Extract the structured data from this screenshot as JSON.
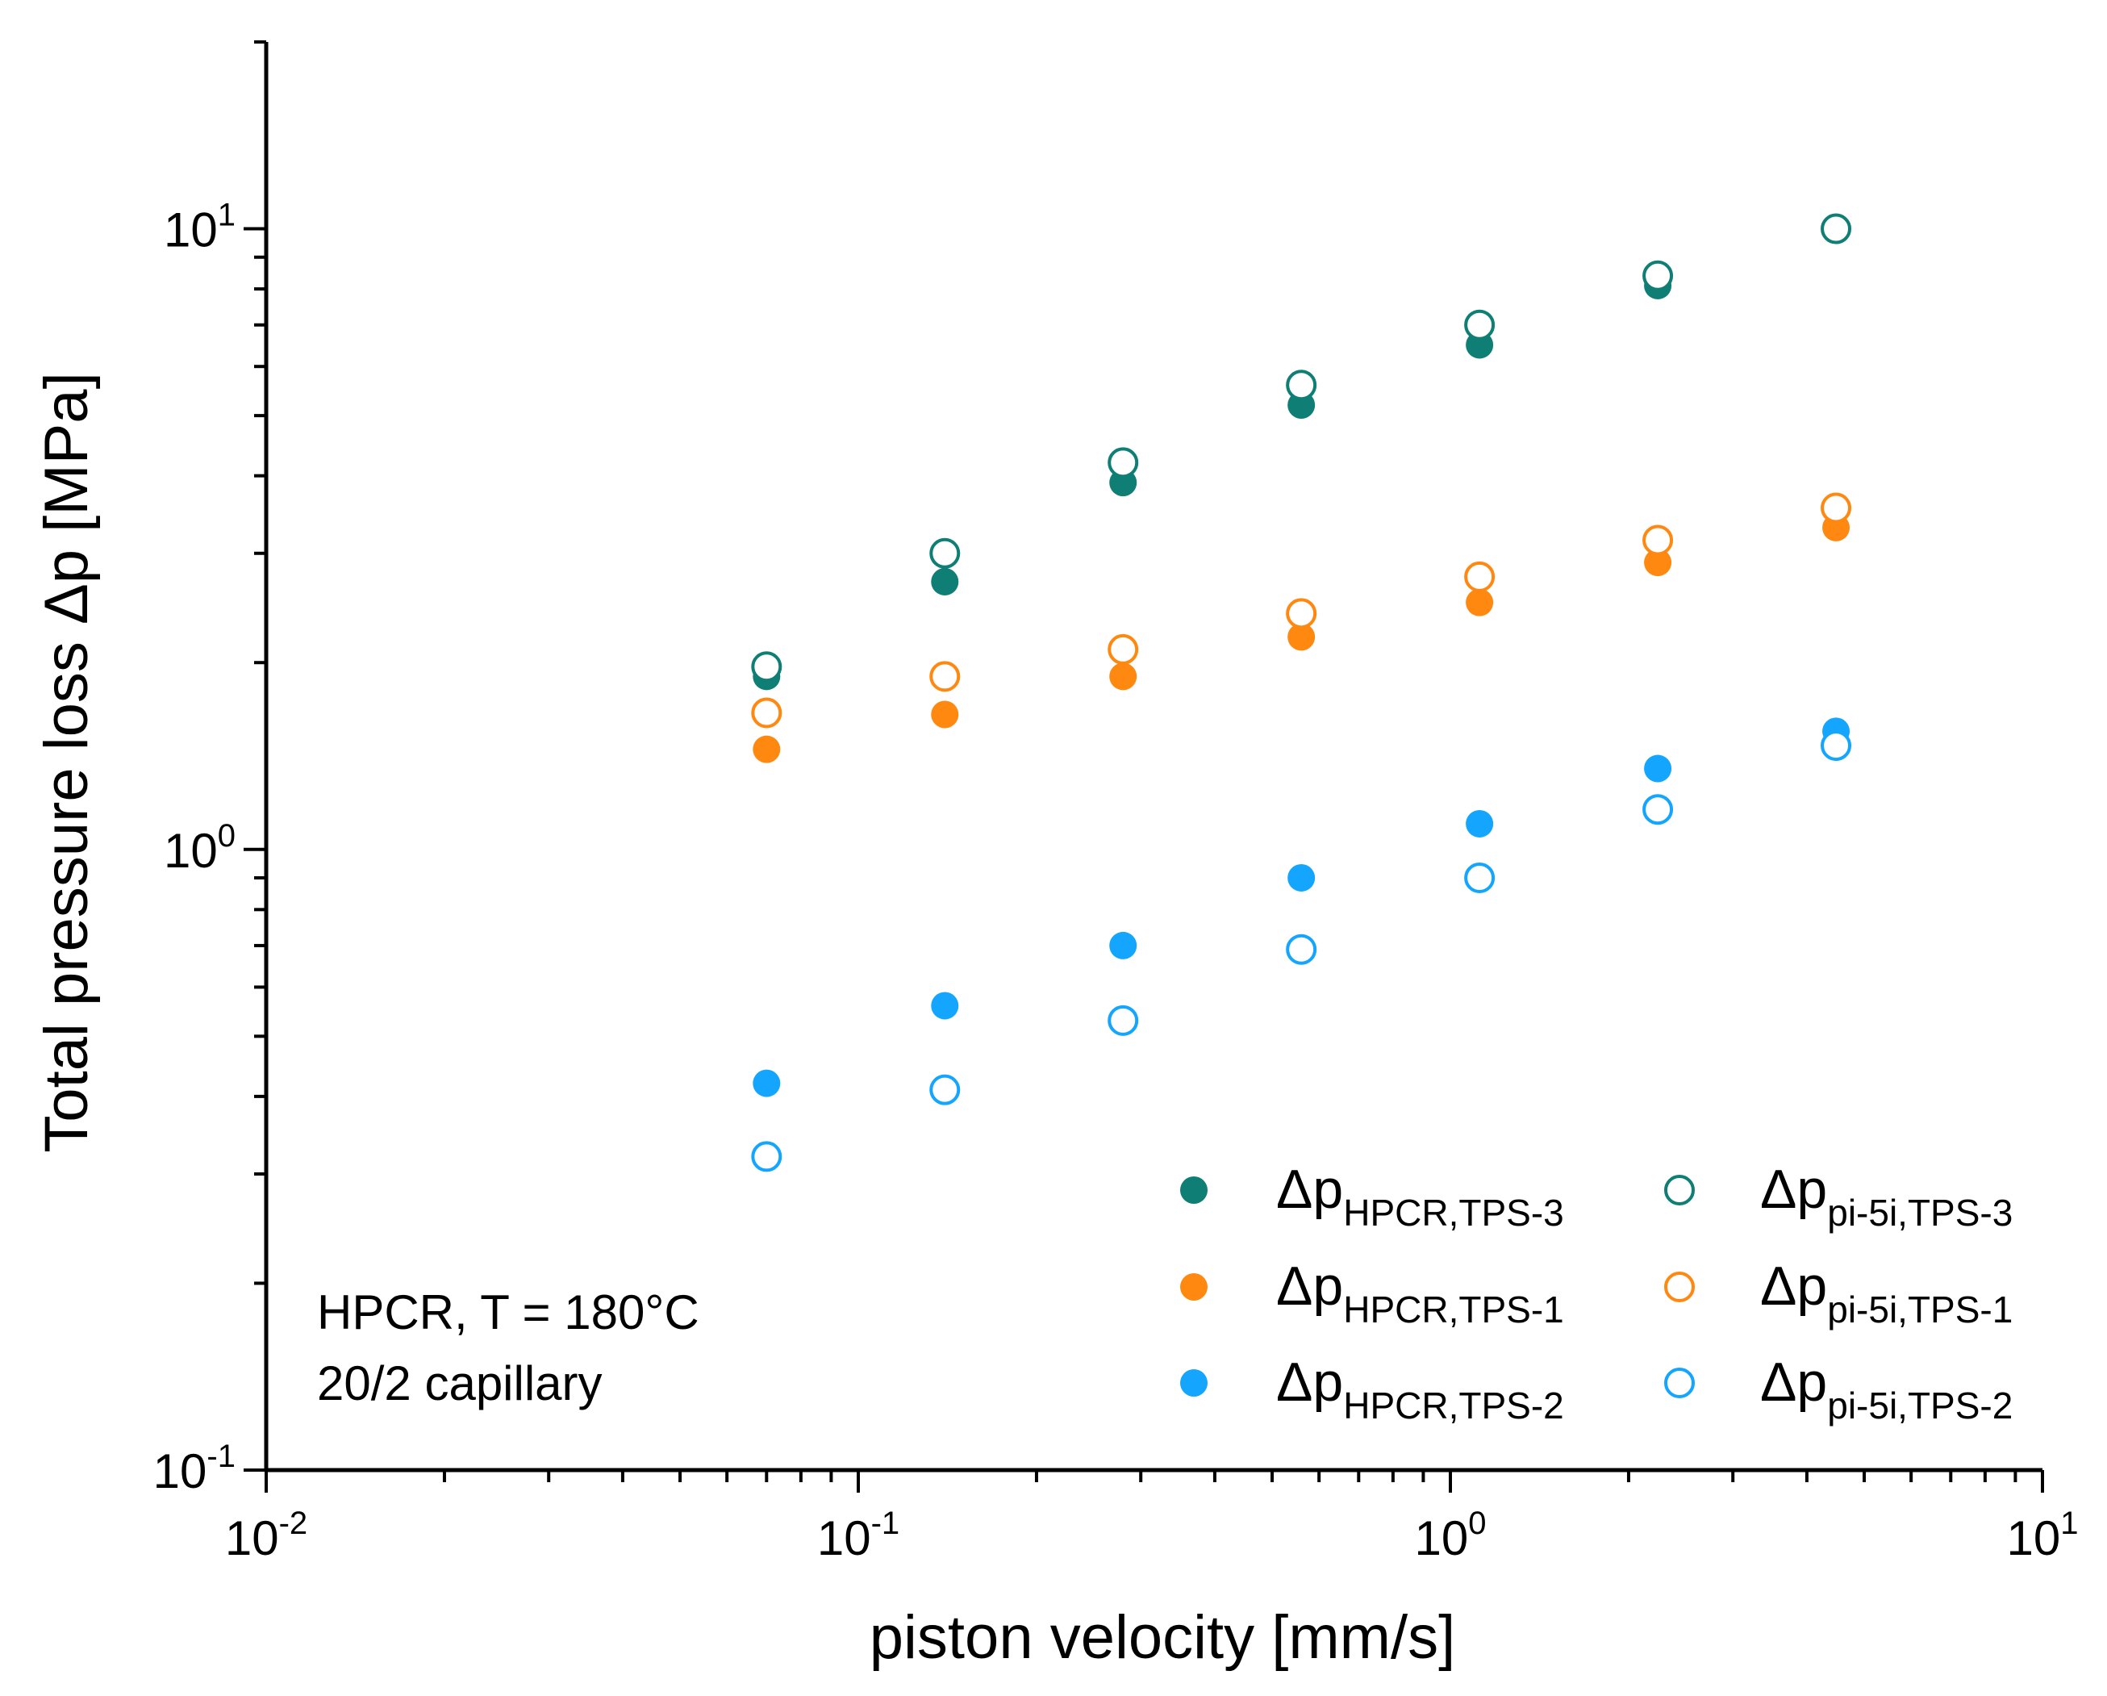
{
  "chart_data": {
    "type": "scatter",
    "title": "",
    "xlabel": "piston velocity [mm/s]",
    "ylabel": "Total pressure loss Δp [MPa]",
    "xscale": "log",
    "yscale": "log",
    "xlim": [
      0.01,
      10
    ],
    "ylim": [
      0.1,
      20
    ],
    "grid": false,
    "x_ticks": [
      {
        "base": "10",
        "exp": "-2",
        "value": 0.01
      },
      {
        "base": "10",
        "exp": "-1",
        "value": 0.1
      },
      {
        "base": "10",
        "exp": "0",
        "value": 1
      },
      {
        "base": "10",
        "exp": "1",
        "value": 10
      }
    ],
    "y_ticks": [
      {
        "base": "10",
        "exp": "-1",
        "value": 0.1
      },
      {
        "base": "10",
        "exp": "0",
        "value": 1
      },
      {
        "base": "10",
        "exp": "1",
        "value": 10
      }
    ],
    "annotation": [
      "HPCR, T = 180°C",
      "20/2 capillary"
    ],
    "legend_position": "bottom-right",
    "series": [
      {
        "name": "ΔpHPCR,TPS-3",
        "symbol": "Δp",
        "subscript": "HPCR,TPS-3",
        "marker": "filled",
        "color": "#0f7f75",
        "x": [
          0.07,
          0.14,
          0.28,
          0.56,
          1.12,
          2.24
        ],
        "y": [
          1.9,
          2.7,
          3.9,
          5.2,
          6.5,
          8.1
        ]
      },
      {
        "name": "ΔpHPCR,TPS-1",
        "symbol": "Δp",
        "subscript": "HPCR,TPS-1",
        "marker": "filled",
        "color": "#ff8811",
        "x": [
          0.07,
          0.14,
          0.28,
          0.56,
          1.12,
          2.24,
          4.48
        ],
        "y": [
          1.45,
          1.65,
          1.9,
          2.2,
          2.5,
          2.9,
          3.3
        ]
      },
      {
        "name": "ΔpHPCR,TPS-2",
        "symbol": "Δp",
        "subscript": "HPCR,TPS-2",
        "marker": "filled",
        "color": "#14a5ff",
        "x": [
          0.07,
          0.14,
          0.28,
          0.56,
          1.12,
          2.24,
          4.48
        ],
        "y": [
          0.42,
          0.56,
          0.7,
          0.9,
          1.1,
          1.35,
          1.55
        ]
      },
      {
        "name": "Δppi-5i,TPS-3",
        "symbol": "Δp",
        "subscript": "pi-5i,TPS-3",
        "marker": "open",
        "color": "#0f7f75",
        "x": [
          0.07,
          0.14,
          0.28,
          0.56,
          1.12,
          2.24,
          4.48
        ],
        "y": [
          1.97,
          3.0,
          4.2,
          5.6,
          7.0,
          8.4,
          10.0
        ]
      },
      {
        "name": "Δppi-5i,TPS-1",
        "symbol": "Δp",
        "subscript": "pi-5i,TPS-1",
        "marker": "open",
        "color": "#ff8811",
        "x": [
          0.07,
          0.14,
          0.28,
          0.56,
          1.12,
          2.24,
          4.48
        ],
        "y": [
          1.66,
          1.9,
          2.1,
          2.4,
          2.75,
          3.15,
          3.55
        ]
      },
      {
        "name": "Δppi-5i,TPS-2",
        "symbol": "Δp",
        "subscript": "pi-5i,TPS-2",
        "marker": "open",
        "color": "#14a5ff",
        "x": [
          0.07,
          0.14,
          0.28,
          0.56,
          1.12,
          2.24,
          4.48
        ],
        "y": [
          0.32,
          0.41,
          0.53,
          0.69,
          0.9,
          1.16,
          1.47
        ]
      }
    ]
  }
}
